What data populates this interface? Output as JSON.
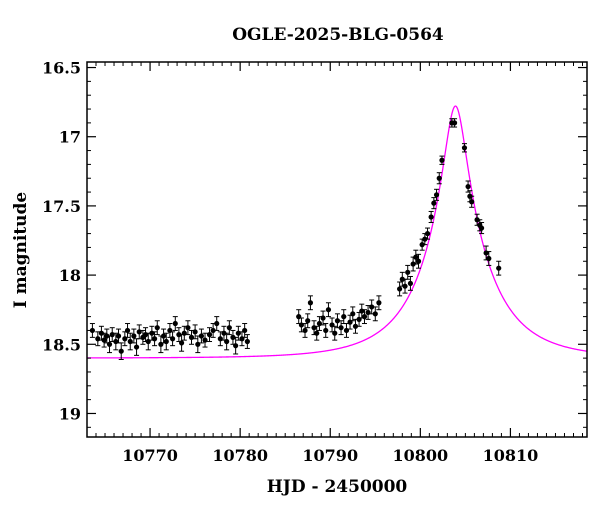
{
  "chart_data": {
    "type": "scatter",
    "title": "OGLE-2025-BLG-0564",
    "xlabel": "HJD - 2450000",
    "ylabel": "I magnitude",
    "xlim": [
      10763,
      10818.5
    ],
    "ylim": [
      19.17,
      16.46
    ],
    "y_inverted": true,
    "x_ticks": [
      10770,
      10780,
      10790,
      10800,
      10810
    ],
    "y_ticks": [
      16.5,
      17,
      17.5,
      18,
      18.5,
      19
    ],
    "y_tick_labels": [
      "16.5",
      "17",
      "17.5",
      "18",
      "18.5",
      "19"
    ],
    "grid": false,
    "point_color": "#000000",
    "model_color": "#ff00ff",
    "series": [
      {
        "kind": "points",
        "points": [
          [
            10763.6,
            18.4,
            0.05
          ],
          [
            10764.2,
            18.46,
            0.05
          ],
          [
            10764.6,
            18.42,
            0.05
          ],
          [
            10764.9,
            18.47,
            0.05
          ],
          [
            10765.2,
            18.44,
            0.05
          ],
          [
            10765.5,
            18.5,
            0.06
          ],
          [
            10765.8,
            18.43,
            0.05
          ],
          [
            10766.2,
            18.48,
            0.06
          ],
          [
            10766.5,
            18.44,
            0.05
          ],
          [
            10766.8,
            18.55,
            0.06
          ],
          [
            10767.2,
            18.46,
            0.05
          ],
          [
            10767.5,
            18.4,
            0.05
          ],
          [
            10767.8,
            18.48,
            0.06
          ],
          [
            10768.2,
            18.44,
            0.05
          ],
          [
            10768.5,
            18.52,
            0.06
          ],
          [
            10768.8,
            18.41,
            0.05
          ],
          [
            10769.2,
            18.45,
            0.05
          ],
          [
            10769.5,
            18.43,
            0.05
          ],
          [
            10769.8,
            18.48,
            0.06
          ],
          [
            10770.2,
            18.42,
            0.05
          ],
          [
            10770.5,
            18.46,
            0.05
          ],
          [
            10770.8,
            18.38,
            0.05
          ],
          [
            10771.2,
            18.5,
            0.06
          ],
          [
            10771.5,
            18.44,
            0.05
          ],
          [
            10771.8,
            18.48,
            0.06
          ],
          [
            10772.2,
            18.4,
            0.05
          ],
          [
            10772.5,
            18.46,
            0.05
          ],
          [
            10772.8,
            18.35,
            0.05
          ],
          [
            10773.2,
            18.43,
            0.05
          ],
          [
            10773.5,
            18.49,
            0.06
          ],
          [
            10773.8,
            18.42,
            0.05
          ],
          [
            10774.2,
            18.38,
            0.05
          ],
          [
            10774.6,
            18.45,
            0.05
          ],
          [
            10775.0,
            18.41,
            0.05
          ],
          [
            10775.3,
            18.5,
            0.06
          ],
          [
            10775.7,
            18.44,
            0.05
          ],
          [
            10776.1,
            18.47,
            0.05
          ],
          [
            10776.6,
            18.43,
            0.05
          ],
          [
            10777.0,
            18.4,
            0.05
          ],
          [
            10777.4,
            18.35,
            0.05
          ],
          [
            10777.8,
            18.46,
            0.05
          ],
          [
            10778.2,
            18.42,
            0.05
          ],
          [
            10778.5,
            18.48,
            0.06
          ],
          [
            10778.8,
            18.38,
            0.05
          ],
          [
            10779.2,
            18.45,
            0.05
          ],
          [
            10779.5,
            18.51,
            0.06
          ],
          [
            10779.8,
            18.42,
            0.05
          ],
          [
            10780.2,
            18.46,
            0.05
          ],
          [
            10780.5,
            18.4,
            0.05
          ],
          [
            10780.8,
            18.48,
            0.05
          ],
          [
            10786.5,
            18.3,
            0.05
          ],
          [
            10786.8,
            18.36,
            0.05
          ],
          [
            10787.2,
            18.4,
            0.05
          ],
          [
            10787.5,
            18.33,
            0.05
          ],
          [
            10787.8,
            18.2,
            0.05
          ],
          [
            10788.2,
            18.38,
            0.05
          ],
          [
            10788.5,
            18.42,
            0.05
          ],
          [
            10788.8,
            18.35,
            0.05
          ],
          [
            10789.2,
            18.31,
            0.05
          ],
          [
            10789.5,
            18.4,
            0.05
          ],
          [
            10789.8,
            18.25,
            0.05
          ],
          [
            10790.2,
            18.36,
            0.05
          ],
          [
            10790.5,
            18.42,
            0.05
          ],
          [
            10790.8,
            18.33,
            0.05
          ],
          [
            10791.2,
            18.38,
            0.05
          ],
          [
            10791.5,
            18.3,
            0.05
          ],
          [
            10791.8,
            18.4,
            0.05
          ],
          [
            10792.2,
            18.34,
            0.05
          ],
          [
            10792.5,
            18.28,
            0.05
          ],
          [
            10792.8,
            18.37,
            0.05
          ],
          [
            10793.2,
            18.32,
            0.05
          ],
          [
            10793.5,
            18.26,
            0.05
          ],
          [
            10793.8,
            18.3,
            0.05
          ],
          [
            10794.2,
            18.27,
            0.05
          ],
          [
            10794.6,
            18.23,
            0.05
          ],
          [
            10795.0,
            18.28,
            0.05
          ],
          [
            10795.4,
            18.2,
            0.05
          ],
          [
            10797.7,
            18.1,
            0.05
          ],
          [
            10798.0,
            18.03,
            0.05
          ],
          [
            10798.3,
            18.08,
            0.05
          ],
          [
            10798.6,
            17.98,
            0.05
          ],
          [
            10798.9,
            18.06,
            0.05
          ],
          [
            10799.2,
            17.92,
            0.05
          ],
          [
            10799.5,
            17.87,
            0.05
          ],
          [
            10799.8,
            17.9,
            0.05
          ],
          [
            10800.2,
            17.78,
            0.04
          ],
          [
            10800.5,
            17.74,
            0.04
          ],
          [
            10800.8,
            17.7,
            0.04
          ],
          [
            10801.2,
            17.58,
            0.04
          ],
          [
            10801.5,
            17.48,
            0.04
          ],
          [
            10801.8,
            17.42,
            0.04
          ],
          [
            10802.1,
            17.3,
            0.04
          ],
          [
            10802.4,
            17.17,
            0.03
          ],
          [
            10803.5,
            16.9,
            0.03
          ],
          [
            10803.8,
            16.9,
            0.03
          ],
          [
            10804.9,
            17.08,
            0.03
          ],
          [
            10805.3,
            17.36,
            0.04
          ],
          [
            10805.5,
            17.43,
            0.04
          ],
          [
            10805.7,
            17.47,
            0.04
          ],
          [
            10806.3,
            17.6,
            0.04
          ],
          [
            10806.6,
            17.64,
            0.04
          ],
          [
            10806.8,
            17.66,
            0.04
          ],
          [
            10807.3,
            17.84,
            0.05
          ],
          [
            10807.6,
            17.88,
            0.05
          ],
          [
            10808.7,
            17.95,
            0.05
          ]
        ]
      },
      {
        "kind": "model",
        "t0": 10803.9,
        "u0": 0.165,
        "tE": 7.1,
        "I_base": 18.6,
        "fs": 0.85
      }
    ]
  }
}
